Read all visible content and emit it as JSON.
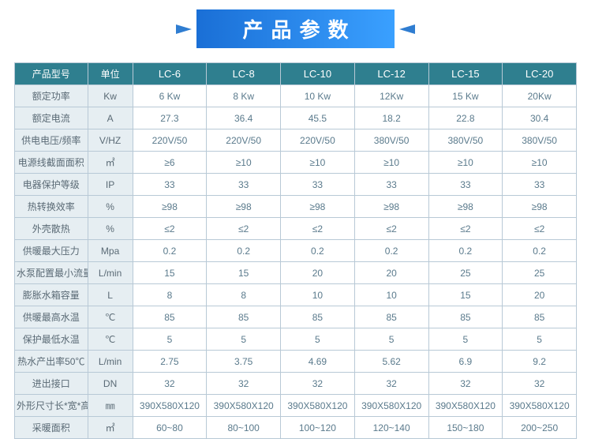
{
  "colors": {
    "banner_gradient_from": "#1a6fd6",
    "banner_gradient_to": "#3aa0ff",
    "tri_color": "#2f7dd1",
    "border": "#b8c9d6",
    "header_bg": "#2f7f8f",
    "header_text": "#ffffff",
    "rowlabel_bg": "#e6eef2",
    "cell_bg": "#ffffff",
    "cell_text": "#5a7a8c",
    "rowlabel_text": "#5a6a75"
  },
  "title": "产品参数",
  "columns": [
    "产品型号",
    "单位",
    "LC-6",
    "LC-8",
    "LC-10",
    "LC-12",
    "LC-15",
    "LC-20"
  ],
  "rows": [
    {
      "label": "额定功率",
      "unit": "Kw",
      "vals": [
        "6 Kw",
        "8 Kw",
        "10 Kw",
        "12Kw",
        "15 Kw",
        "20Kw"
      ]
    },
    {
      "label": "额定电流",
      "unit": "A",
      "vals": [
        "27.3",
        "36.4",
        "45.5",
        "18.2",
        "22.8",
        "30.4"
      ]
    },
    {
      "label": "供电电压/频率",
      "unit": "V/HZ",
      "vals": [
        "220V/50",
        "220V/50",
        "220V/50",
        "380V/50",
        "380V/50",
        "380V/50"
      ]
    },
    {
      "label": "电源线截面面积",
      "unit": "㎡",
      "vals": [
        "≥6",
        "≥10",
        "≥10",
        "≥10",
        "≥10",
        "≥10"
      ]
    },
    {
      "label": "电器保护等级",
      "unit": "IP",
      "vals": [
        "33",
        "33",
        "33",
        "33",
        "33",
        "33"
      ]
    },
    {
      "label": "热转换效率",
      "unit": "%",
      "vals": [
        "≥98",
        "≥98",
        "≥98",
        "≥98",
        "≥98",
        "≥98"
      ]
    },
    {
      "label": "外壳散热",
      "unit": "%",
      "vals": [
        "≤2",
        "≤2",
        "≤2",
        "≤2",
        "≤2",
        "≤2"
      ]
    },
    {
      "label": "供暖最大压力",
      "unit": "Mpa",
      "vals": [
        "0.2",
        "0.2",
        "0.2",
        "0.2",
        "0.2",
        "0.2"
      ]
    },
    {
      "label": "水泵配置最小流量",
      "unit": "L/min",
      "vals": [
        "15",
        "15",
        "20",
        "20",
        "25",
        "25"
      ]
    },
    {
      "label": "膨胀水箱容量",
      "unit": "L",
      "vals": [
        "8",
        "8",
        "10",
        "10",
        "15",
        "20"
      ]
    },
    {
      "label": "供暖最高水温",
      "unit": "℃",
      "vals": [
        "85",
        "85",
        "85",
        "85",
        "85",
        "85"
      ]
    },
    {
      "label": "保护最低水温",
      "unit": "℃",
      "vals": [
        "5",
        "5",
        "5",
        "5",
        "5",
        "5"
      ]
    },
    {
      "label": "热水产出率50℃",
      "unit": "L/min",
      "vals": [
        "2.75",
        "3.75",
        "4.69",
        "5.62",
        "6.9",
        "9.2"
      ]
    },
    {
      "label": "进出接口",
      "unit": "DN",
      "vals": [
        "32",
        "32",
        "32",
        "32",
        "32",
        "32"
      ]
    },
    {
      "label": "外形尺寸长*宽*高",
      "unit": "㎜",
      "vals": [
        "390X580X120",
        "390X580X120",
        "390X580X120",
        "390X580X120",
        "390X580X120",
        "390X580X120"
      ]
    },
    {
      "label": "采暖面积",
      "unit": "㎡",
      "vals": [
        "60~80",
        "80~100",
        "100~120",
        "120~140",
        "150~180",
        "200~250"
      ]
    }
  ]
}
